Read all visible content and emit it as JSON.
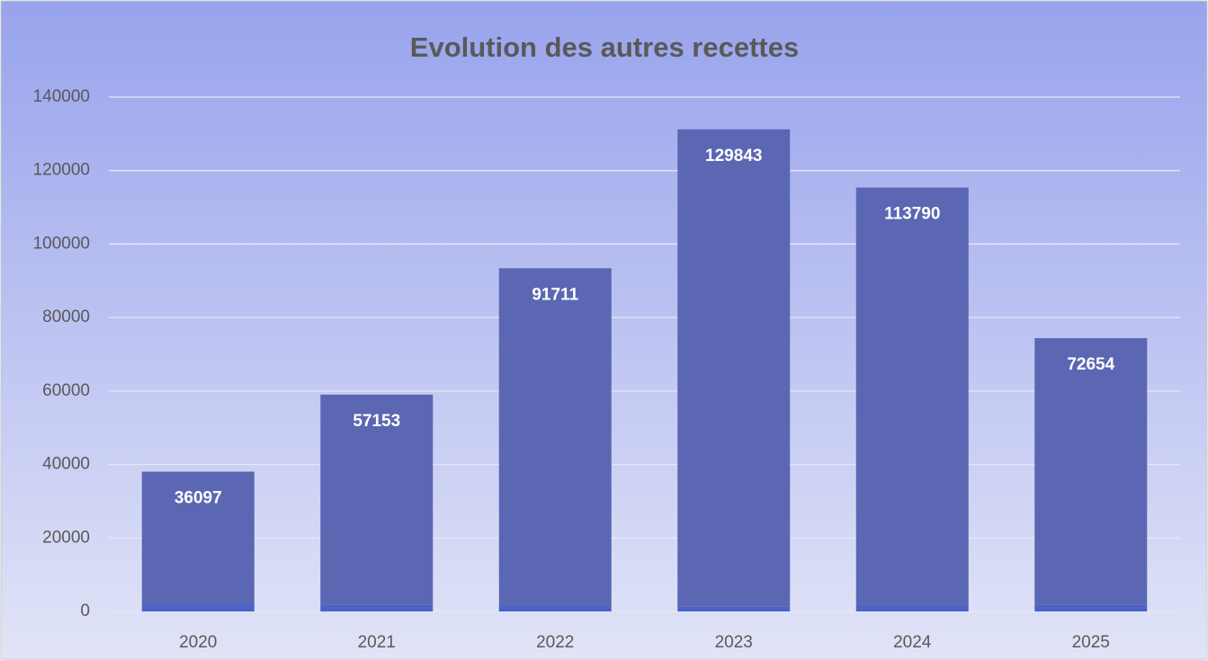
{
  "chart_data": {
    "type": "stacked_bar",
    "title": "Evolution des autres recettes",
    "categories": [
      "2020",
      "2021",
      "2022",
      "2023",
      "2024",
      "2025"
    ],
    "series": [
      {
        "color": "#4c62c6",
        "values": [
          1950,
          1870,
          1700,
          1380,
          1580,
          1740
        ]
      },
      {
        "color": "#5b67b2",
        "values": [
          36097,
          57153,
          91711,
          129843,
          113790,
          72654
        ],
        "data_labels": true
      }
    ],
    "ylim": [
      0,
      140000
    ],
    "yticks": [
      0,
      20000,
      40000,
      60000,
      80000,
      100000,
      120000,
      140000
    ],
    "grid": true
  }
}
